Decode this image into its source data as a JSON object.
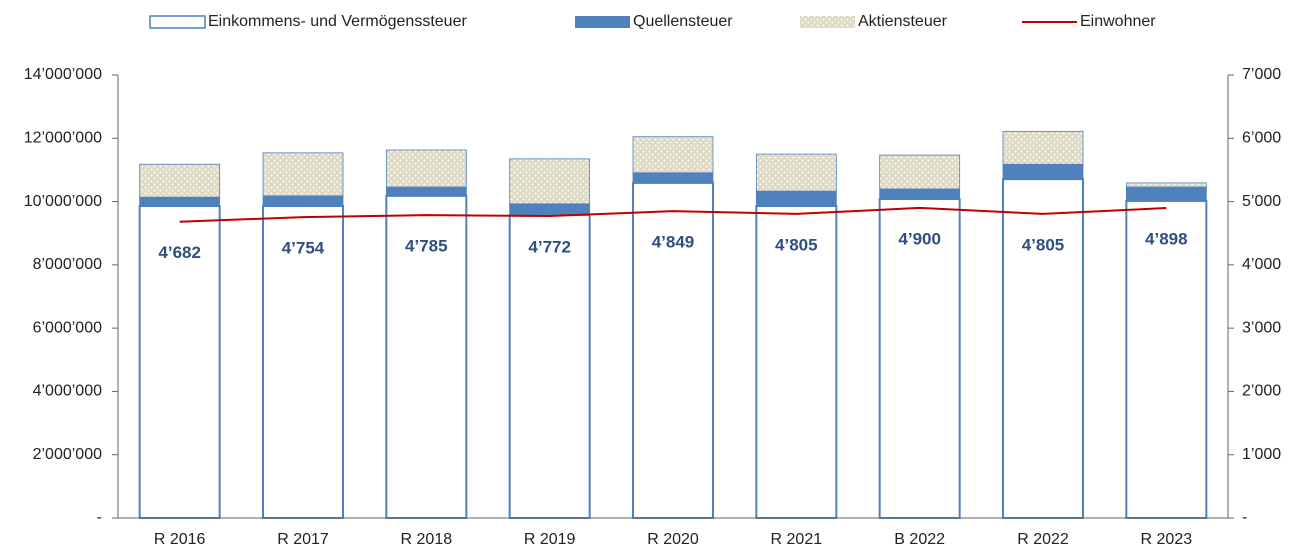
{
  "chart_data": {
    "type": "bar",
    "stacked": true,
    "categories": [
      "R 2016",
      "R 2017",
      "R 2018",
      "R 2019",
      "R 2020",
      "R 2021",
      "B 2022",
      "R 2022",
      "R 2023"
    ],
    "series": [
      {
        "name": "Einkommens- und Vermögenssteuer",
        "color": "#ffffff",
        "edge": "#4f81bd",
        "values": [
          9860000,
          9860000,
          10180000,
          9580000,
          10590000,
          9860000,
          10080000,
          10710000,
          10020000
        ]
      },
      {
        "name": "Quellensteuer",
        "color": "#4f81bd",
        "values": [
          280000,
          320000,
          280000,
          350000,
          320000,
          470000,
          320000,
          470000,
          440000
        ]
      },
      {
        "name": "Aktiensteuer",
        "color": "#ddd9c3",
        "pattern": "dots",
        "values": [
          1040000,
          1360000,
          1170000,
          1420000,
          1140000,
          1170000,
          1070000,
          1040000,
          130000
        ]
      },
      {
        "name": "Einwohner",
        "color": "#c00000",
        "type": "line",
        "axis": "y2",
        "values": [
          4682,
          4754,
          4785,
          4772,
          4849,
          4805,
          4900,
          4805,
          4898
        ],
        "value_labels": [
          "4’682",
          "4’754",
          "4’785",
          "4’772",
          "4’849",
          "4’805",
          "4’900",
          "4’805",
          "4’898"
        ]
      }
    ],
    "ylim": [
      0,
      14000000
    ],
    "yticks": [
      {
        "value": 0,
        "label": "-"
      },
      {
        "value": 2000000,
        "label": "2’000’000"
      },
      {
        "value": 4000000,
        "label": "4’000’000"
      },
      {
        "value": 6000000,
        "label": "6’000’000"
      },
      {
        "value": 8000000,
        "label": "8’000’000"
      },
      {
        "value": 10000000,
        "label": "10’000’000"
      },
      {
        "value": 12000000,
        "label": "12’000’000"
      },
      {
        "value": 14000000,
        "label": "14’000’000"
      }
    ],
    "y2lim": [
      0,
      7000
    ],
    "y2ticks": [
      {
        "value": 0,
        "label": "-"
      },
      {
        "value": 1000,
        "label": "1’000"
      },
      {
        "value": 2000,
        "label": "2’000"
      },
      {
        "value": 3000,
        "label": "3’000"
      },
      {
        "value": 4000,
        "label": "4’000"
      },
      {
        "value": 5000,
        "label": "5’000"
      },
      {
        "value": 6000,
        "label": "6’000"
      },
      {
        "value": 7000,
        "label": "7’000"
      }
    ],
    "legend": "top"
  }
}
